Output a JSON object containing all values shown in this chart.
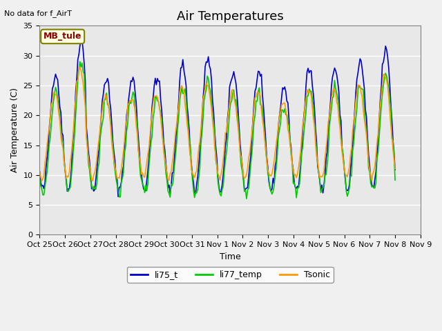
{
  "title": "Air Temperatures",
  "xlabel": "Time",
  "ylabel": "Air Temperature (C)",
  "no_data_text": "No data for f_AirT",
  "legend_box_text": "MB_tule",
  "ylim": [
    0,
    35
  ],
  "yticks": [
    0,
    5,
    10,
    15,
    20,
    25,
    30,
    35
  ],
  "series": [
    "li75_t",
    "li77_temp",
    "Tsonic"
  ],
  "colors": [
    "#0000cc",
    "#00cc00",
    "#ff9900"
  ],
  "line_width": 1.2,
  "plot_bg_color": "#e8e8e8",
  "fig_bg_color": "#f0f0f0",
  "x_tick_labels": [
    "Oct 25",
    "Oct 26",
    "Oct 27",
    "Oct 28",
    "Oct 29",
    "Oct 30",
    "Oct 31",
    "Nov 1",
    "Nov 2",
    "Nov 3",
    "Nov 4",
    "Nov 5",
    "Nov 6",
    "Nov 7",
    "Nov 8",
    "Nov 9"
  ],
  "n_points": 336,
  "n_days": 15
}
